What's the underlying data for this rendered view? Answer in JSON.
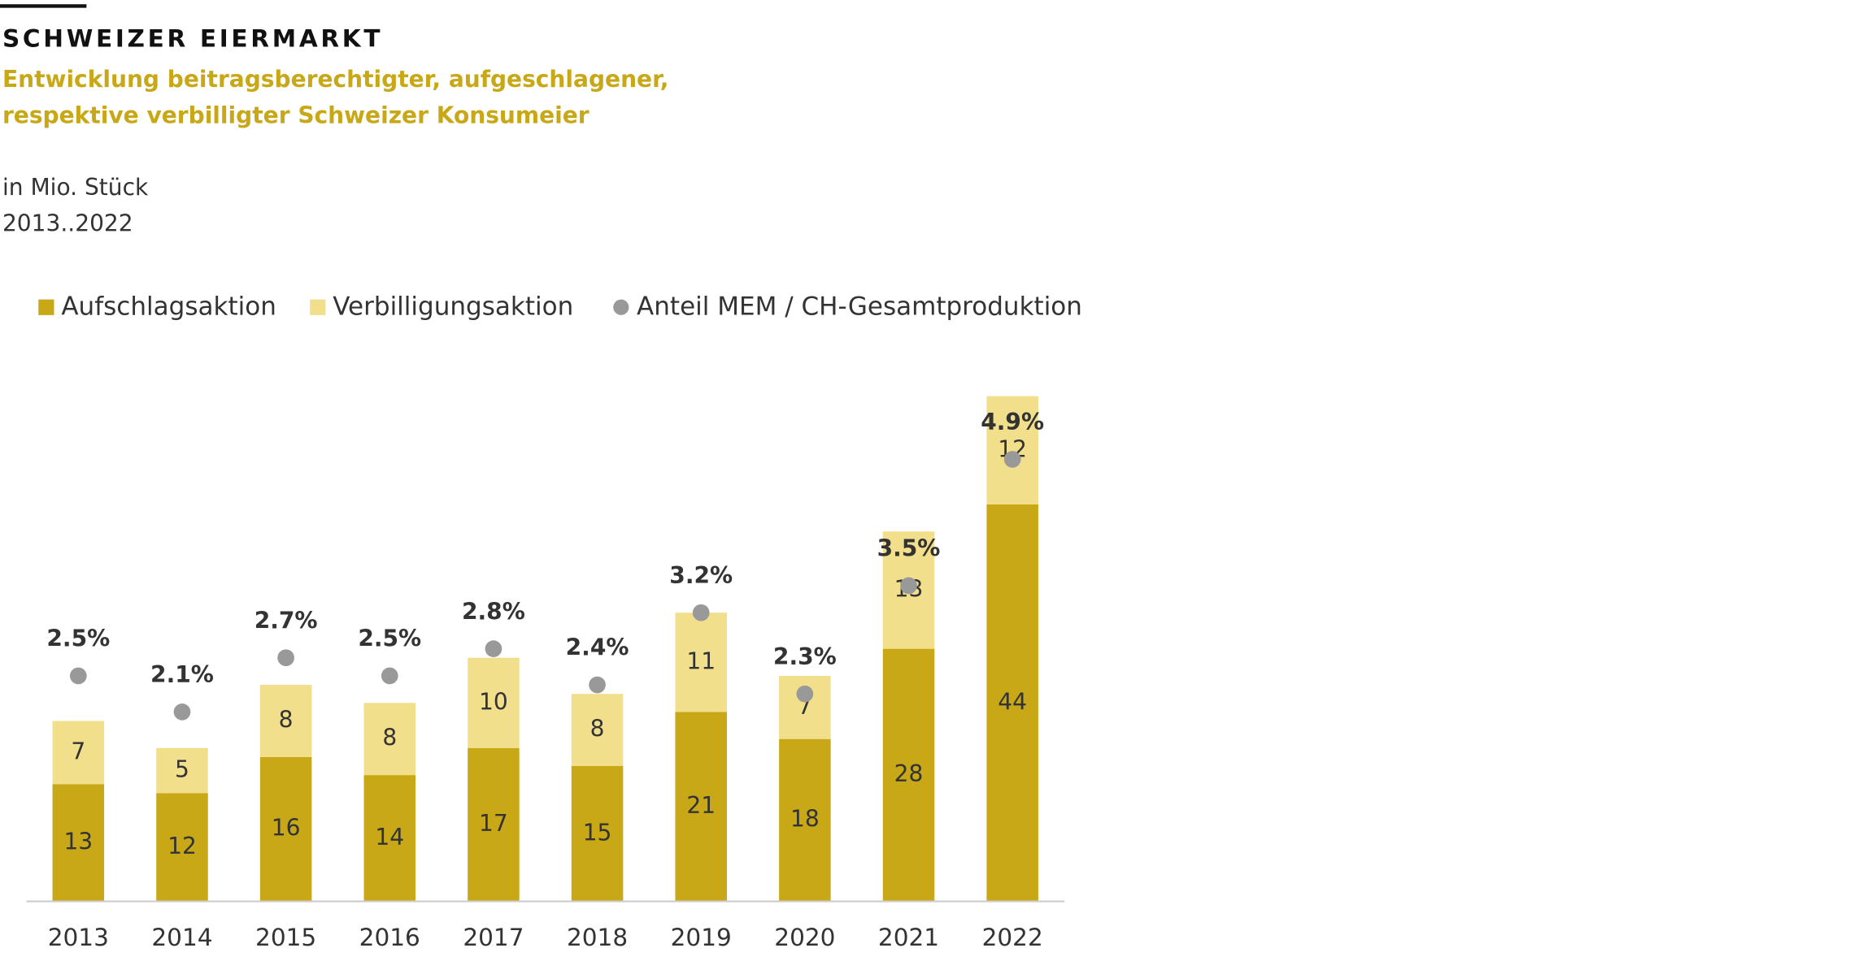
{
  "chart_data": {
    "type": "bar",
    "stacked": true,
    "title": "SCHWEIZER EIERMARKT",
    "subtitle": [
      "Entwicklung beitragsberechtigter, aufgeschlagener,",
      "respektive verbilligter Schweizer Konsumeier"
    ],
    "notes": [
      "in Mio. Stück",
      "2013..2022"
    ],
    "categories": [
      "2013",
      "2014",
      "2015",
      "2016",
      "2017",
      "2018",
      "2019",
      "2020",
      "2021",
      "2022"
    ],
    "series": [
      {
        "name": "Aufschlagsaktion",
        "type": "bar",
        "color": "#c9a818",
        "values": [
          13,
          12,
          16,
          14,
          17,
          15,
          21,
          18,
          28,
          44
        ]
      },
      {
        "name": "Verbilligungsaktion",
        "type": "bar",
        "color": "#f2df8c",
        "values": [
          7,
          5,
          8,
          8,
          10,
          8,
          11,
          7,
          13,
          12
        ]
      },
      {
        "name": "Anteil MEM / CH-Gesamtproduktion",
        "type": "scatter",
        "axis": "y2",
        "color": "#999999",
        "values": [
          2.5,
          2.1,
          2.7,
          2.5,
          2.8,
          2.4,
          3.2,
          2.3,
          3.5,
          4.9
        ],
        "value_labels": [
          "2.5%",
          "2.1%",
          "2.7%",
          "2.5%",
          "2.8%",
          "2.4%",
          "3.2%",
          "2.3%",
          "3.5%",
          "4.9%"
        ]
      }
    ],
    "ylim": [
      0,
      60
    ],
    "y2lim": [
      0,
      6
    ],
    "grid": false,
    "legend": "top-left"
  }
}
